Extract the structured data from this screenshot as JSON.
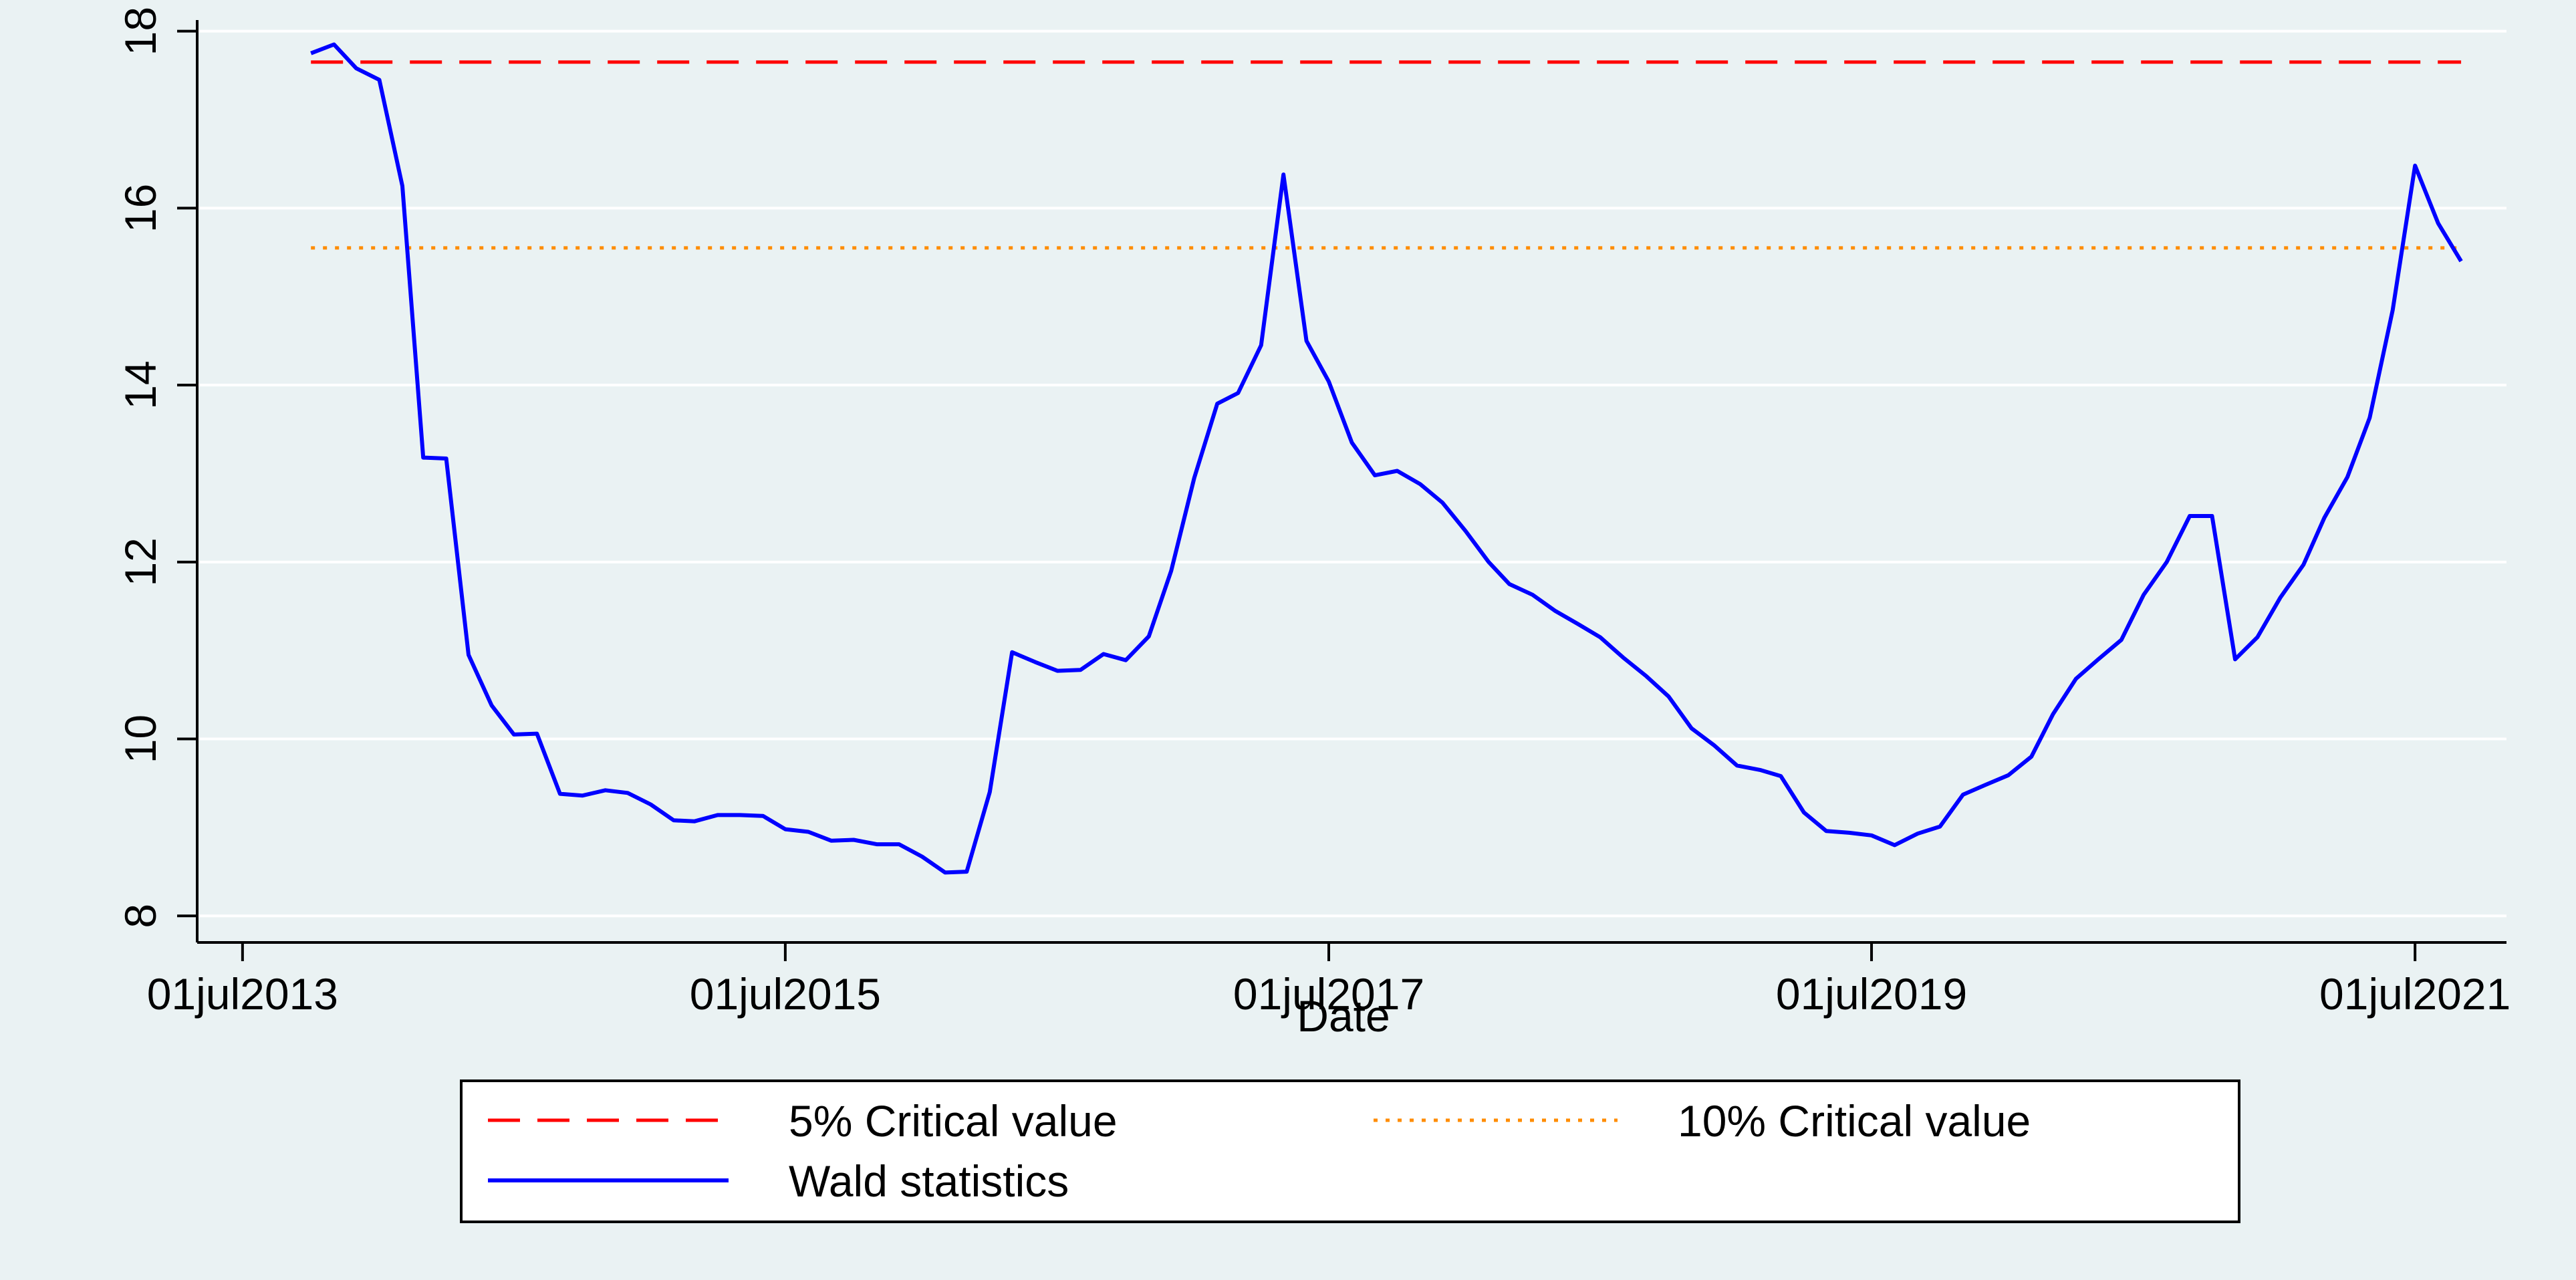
{
  "chart_data": {
    "type": "line",
    "xlabel": "Date",
    "ylabel": "",
    "title": "",
    "x_tick_labels": [
      "01jul2013",
      "01jul2015",
      "01jul2017",
      "01jul2019",
      "01jul2021"
    ],
    "y_tick_labels": [
      "8",
      "10",
      "12",
      "14",
      "16",
      "18"
    ],
    "y_ticks": [
      8,
      10,
      12,
      14,
      16,
      18
    ],
    "xlim": [
      "2013-05-01",
      "2021-11-01"
    ],
    "ylim": [
      7.7,
      18.05
    ],
    "grid": true,
    "legend_position": "bottom",
    "series": [
      {
        "name": "5% Critical value",
        "style": "dashed",
        "color": "#ff0000",
        "x": [
          "2013-10-01",
          "2021-09-01"
        ],
        "values": [
          17.65,
          17.65
        ]
      },
      {
        "name": "10% Critical value",
        "style": "dotted",
        "color": "#ff8c00",
        "x": [
          "2013-10-01",
          "2021-09-01"
        ],
        "values": [
          15.55,
          15.55
        ]
      },
      {
        "name": "Wald statistics",
        "style": "solid",
        "color": "#0000ff",
        "x": [
          "2013-10-01",
          "2013-11-01",
          "2013-12-01",
          "2014-01-01",
          "2014-02-01",
          "2014-03-01",
          "2014-04-01",
          "2014-05-01",
          "2014-06-01",
          "2014-07-01",
          "2014-08-01",
          "2014-09-01",
          "2014-10-01",
          "2014-11-01",
          "2014-12-01",
          "2015-01-01",
          "2015-02-01",
          "2015-03-01",
          "2015-04-01",
          "2015-05-01",
          "2015-06-01",
          "2015-07-01",
          "2015-08-01",
          "2015-09-01",
          "2015-10-01",
          "2015-11-01",
          "2015-12-01",
          "2016-01-01",
          "2016-02-01",
          "2016-03-01",
          "2016-04-01",
          "2016-05-01",
          "2016-06-01",
          "2016-07-01",
          "2016-08-01",
          "2016-09-01",
          "2016-10-01",
          "2016-11-01",
          "2016-12-01",
          "2017-01-01",
          "2017-02-01",
          "2017-03-01",
          "2017-04-01",
          "2017-05-01",
          "2017-06-01",
          "2017-07-01",
          "2017-08-01",
          "2017-09-01",
          "2017-10-01",
          "2017-11-01",
          "2017-12-01",
          "2018-01-01",
          "2018-02-01",
          "2018-03-01",
          "2018-04-01",
          "2018-05-01",
          "2018-06-01",
          "2018-07-01",
          "2018-08-01",
          "2018-09-01",
          "2018-10-01",
          "2018-11-01",
          "2018-12-01",
          "2019-01-01",
          "2019-02-01",
          "2019-03-01",
          "2019-04-01",
          "2019-05-01",
          "2019-06-01",
          "2019-07-01",
          "2019-08-01",
          "2019-09-01",
          "2019-10-01",
          "2019-11-01",
          "2019-12-01",
          "2020-01-01",
          "2020-02-01",
          "2020-03-01",
          "2020-04-01",
          "2020-05-01",
          "2020-06-01",
          "2020-07-01",
          "2020-08-01",
          "2020-09-01",
          "2020-10-01",
          "2020-11-01",
          "2020-12-01",
          "2021-01-01",
          "2021-02-01",
          "2021-03-01",
          "2021-04-01",
          "2021-05-01",
          "2021-06-01",
          "2021-07-01",
          "2021-08-01",
          "2021-09-01"
        ],
        "values": [
          17.75,
          17.85,
          17.58,
          17.45,
          16.25,
          13.18,
          13.17,
          10.95,
          10.38,
          10.05,
          10.06,
          9.38,
          9.36,
          9.42,
          9.39,
          9.26,
          9.08,
          9.07,
          9.14,
          9.14,
          9.13,
          8.98,
          8.95,
          8.85,
          8.86,
          8.81,
          8.81,
          8.67,
          8.49,
          8.5,
          9.4,
          10.98,
          10.87,
          10.77,
          10.78,
          10.96,
          10.89,
          11.16,
          11.9,
          12.95,
          13.79,
          13.91,
          14.45,
          16.38,
          14.5,
          14.04,
          13.35,
          12.98,
          13.03,
          12.88,
          12.67,
          12.35,
          12.0,
          11.75,
          11.63,
          11.45,
          11.3,
          11.15,
          10.92,
          10.71,
          10.48,
          10.12,
          9.93,
          9.7,
          9.65,
          9.58,
          9.17,
          8.96,
          8.94,
          8.91,
          8.8,
          8.93,
          9.01,
          9.37,
          9.48,
          9.59,
          9.8,
          10.28,
          10.68,
          10.9,
          11.12,
          11.63,
          12.0,
          12.52,
          12.52,
          10.9,
          11.15,
          11.6,
          11.97,
          12.5,
          12.96,
          13.63,
          14.85,
          16.48,
          15.83,
          15.4
        ]
      }
    ]
  }
}
